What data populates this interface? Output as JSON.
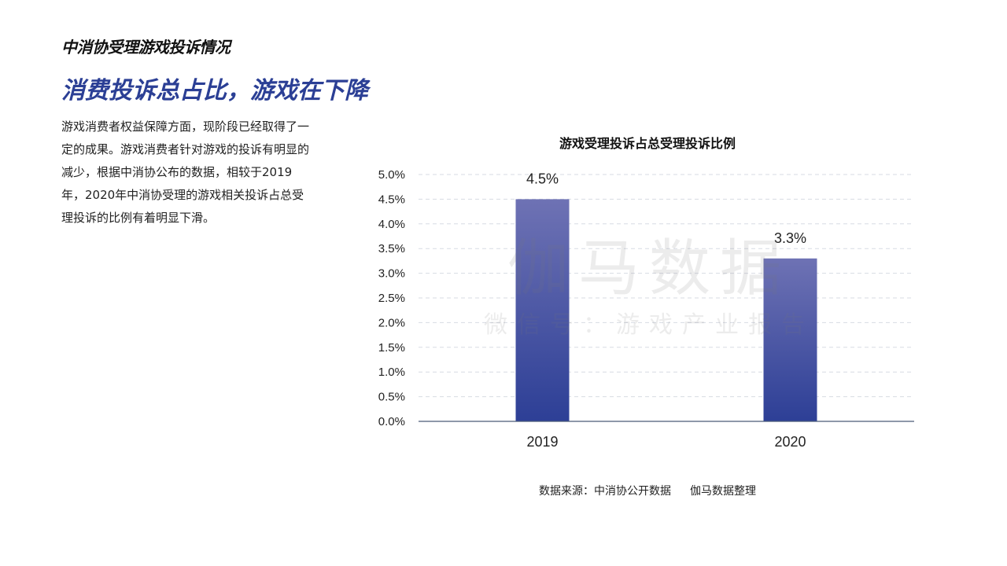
{
  "header": {
    "section_title": "中消协受理游戏投诉情况",
    "headline": "消费投诉总占比，游戏在下降"
  },
  "body": {
    "paragraph": "游戏消费者权益保障方面，现阶段已经取得了一定的成果。游戏消费者针对游戏的投诉有明显的减少，根据中消协公布的数据，相较于2019年，2020年中消协受理的游戏相关投诉占总受理投诉的比例有着明显下滑。"
  },
  "watermark": {
    "main": "伽马数据",
    "sub": "微信号：游戏产业报告"
  },
  "source": {
    "left": "数据来源：中消协公开数据",
    "right": "伽马数据整理"
  },
  "chart_data": {
    "type": "bar",
    "title": "游戏受理投诉占总受理投诉比例",
    "categories": [
      "2019",
      "2020"
    ],
    "values": [
      4.5,
      3.3
    ],
    "data_labels": [
      "4.5%",
      "3.3%"
    ],
    "ylim": [
      0,
      5.0
    ],
    "yticks": [
      0,
      0.5,
      1.0,
      1.5,
      2.0,
      2.5,
      3.0,
      3.5,
      4.0,
      4.5,
      5.0
    ],
    "ytick_labels": [
      "0.0%",
      "0.5%",
      "1.0%",
      "1.5%",
      "2.0%",
      "2.5%",
      "3.0%",
      "3.5%",
      "4.0%",
      "4.5%",
      "5.0%"
    ],
    "grid": true,
    "colors": {
      "bar_top": "#6e72b4",
      "bar_bottom": "#2d3f96",
      "grid": "#d7dbe3",
      "axis": "#4a5a78"
    }
  }
}
